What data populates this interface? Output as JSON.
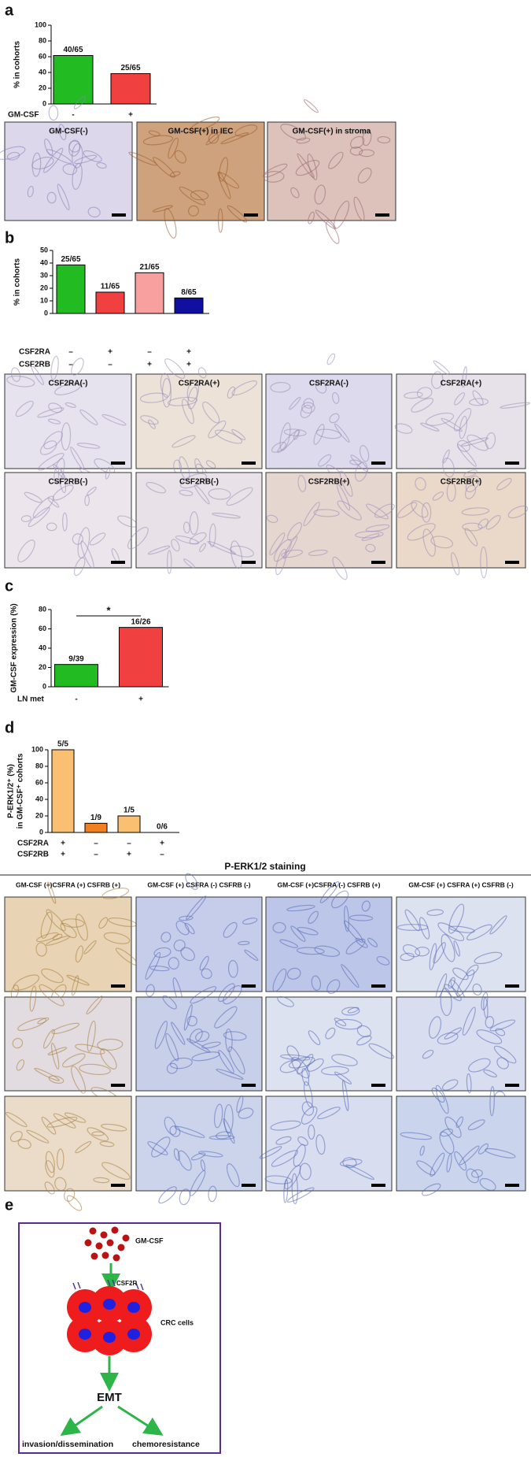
{
  "panel_labels": [
    "a",
    "b",
    "c",
    "d",
    "e"
  ],
  "chart_data": [
    {
      "type": "bar",
      "ylabel": [
        "% in cohorts"
      ],
      "ylim": [
        0,
        100
      ],
      "yticks": [
        0,
        20,
        40,
        60,
        80,
        100
      ],
      "values": [
        61.5,
        38.5
      ],
      "value_labels": [
        "40/65",
        "25/65"
      ],
      "colors": [
        "#22bb22",
        "#f04040"
      ],
      "conditions": [
        {
          "name": "GM-CSF",
          "signs": [
            "-",
            "+"
          ]
        }
      ]
    },
    {
      "type": "bar",
      "ylabel": [
        "% in cohorts"
      ],
      "ylim": [
        0,
        50
      ],
      "yticks": [
        0,
        10,
        20,
        30,
        40,
        50
      ],
      "values": [
        38.5,
        16.9,
        32.3,
        12.3
      ],
      "value_labels": [
        "25/65",
        "11/65",
        "21/65",
        "8/65"
      ],
      "colors": [
        "#22bb22",
        "#f04040",
        "#f8a0a0",
        "#1010a0"
      ],
      "conditions": [
        {
          "name": "CSF2RA",
          "signs": [
            "–",
            "+",
            "–",
            "+"
          ]
        },
        {
          "name": "CSF2RB",
          "signs": [
            "–",
            "–",
            "+",
            "+"
          ]
        }
      ]
    },
    {
      "type": "bar",
      "ylabel": [
        "GM-CSF expression (%)"
      ],
      "ylim": [
        0,
        80
      ],
      "yticks": [
        0,
        20,
        40,
        60,
        80
      ],
      "values": [
        23.1,
        61.5
      ],
      "value_labels": [
        "9/39",
        "16/26"
      ],
      "colors": [
        "#22bb22",
        "#f04040"
      ],
      "conditions": [
        {
          "name": "LN met",
          "signs": [
            "-",
            "+"
          ]
        }
      ],
      "annotation": "*"
    },
    {
      "type": "bar",
      "ylabel": [
        "P-ERK1/2⁺ (%)",
        "in GM-CSF⁺ cohorts"
      ],
      "ylim": [
        0,
        100
      ],
      "yticks": [
        0,
        20,
        40,
        60,
        80,
        100
      ],
      "values": [
        100,
        11.1,
        20,
        0
      ],
      "value_labels": [
        "5/5",
        "1/9",
        "1/5",
        "0/6"
      ],
      "colors": [
        "#fbbf72",
        "#f08020",
        "#fbbf72",
        "#f08020"
      ],
      "conditions": [
        {
          "name": "CSF2RA",
          "signs": [
            "+",
            "–",
            "–",
            "+"
          ]
        },
        {
          "name": "CSF2RB",
          "signs": [
            "+",
            "–",
            "+",
            "–"
          ]
        }
      ]
    }
  ],
  "micrographs_a": [
    "GM-CSF(-)",
    "GM-CSF(+) in IEC",
    "GM-CSF(+) in stroma"
  ],
  "micrographs_b": [
    [
      "CSF2RA(-)",
      "CSF2RA(+)",
      "CSF2RA(-)",
      "CSF2RA(+)"
    ],
    [
      "CSF2RB(-)",
      "CSF2RB(-)",
      "CSF2RB(+)",
      "CSF2RB(+)"
    ]
  ],
  "staining": {
    "title": "P-ERK1/2 staining",
    "columns": [
      "GM-CSF (+)CSFRA (+) CSFRB (+)",
      "GM-CSF (+) CSFRA (-) CSFRB (-)",
      "GM-CSF (+)CSFRA (-) CSFRB (+)",
      "GM-CSF (+) CSFRA (+) CSFRB (-)"
    ]
  },
  "diagram": {
    "ligand": "GM-CSF",
    "receptor": "CSF2R",
    "cells": "CRC cells",
    "process": "EMT",
    "outcomes": [
      "invasion/dissemination",
      "chemoresistance"
    ]
  }
}
